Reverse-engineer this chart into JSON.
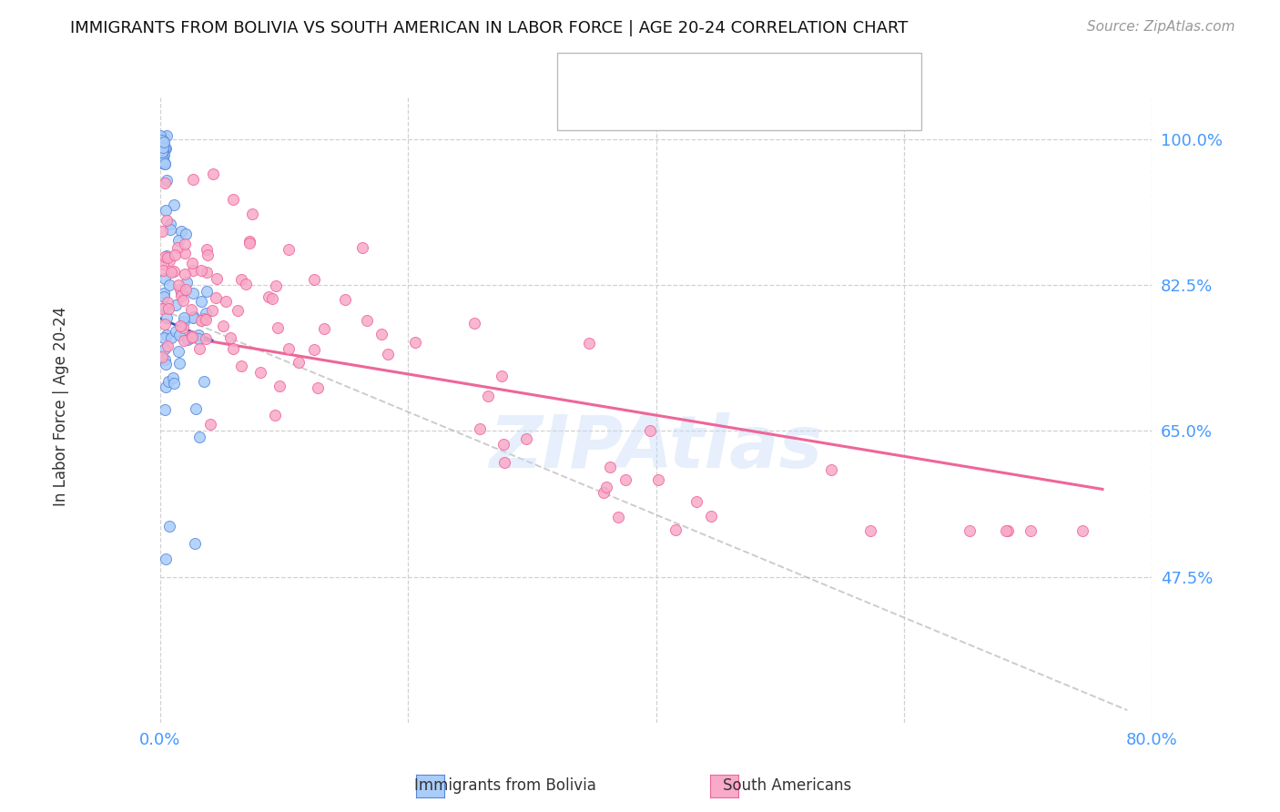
{
  "title": "IMMIGRANTS FROM BOLIVIA VS SOUTH AMERICAN IN LABOR FORCE | AGE 20-24 CORRELATION CHART",
  "source": "Source: ZipAtlas.com",
  "ylabel": "In Labor Force | Age 20-24",
  "xlim": [
    0.0,
    0.8
  ],
  "ylim": [
    0.3,
    1.05
  ],
  "xticks": [
    0.0,
    0.2,
    0.4,
    0.6,
    0.8
  ],
  "xticklabels": [
    "0.0%",
    "",
    "",
    "",
    "80.0%"
  ],
  "yticks": [
    0.475,
    0.65,
    0.825,
    1.0
  ],
  "yticklabels": [
    "47.5%",
    "65.0%",
    "82.5%",
    "100.0%"
  ],
  "bolivia_color": "#aaccf8",
  "south_american_color": "#f8aac8",
  "bolivia_edge": "#5588dd",
  "south_american_edge": "#ee6699",
  "trendline_bolivia_color": "#3355bb",
  "trendline_sa_color": "#ee6699",
  "background": "#ffffff",
  "grid_color": "#cccccc",
  "watermark": "ZIPAtlas",
  "watermark_color": "#c8ddf8",
  "legend_box_color": "#ffffff",
  "legend_border_color": "#bbbbbb",
  "legend_text_color": "#2244bb",
  "tick_color": "#4499ff",
  "source_color": "#999999",
  "title_color": "#111111",
  "ylabel_color": "#333333"
}
